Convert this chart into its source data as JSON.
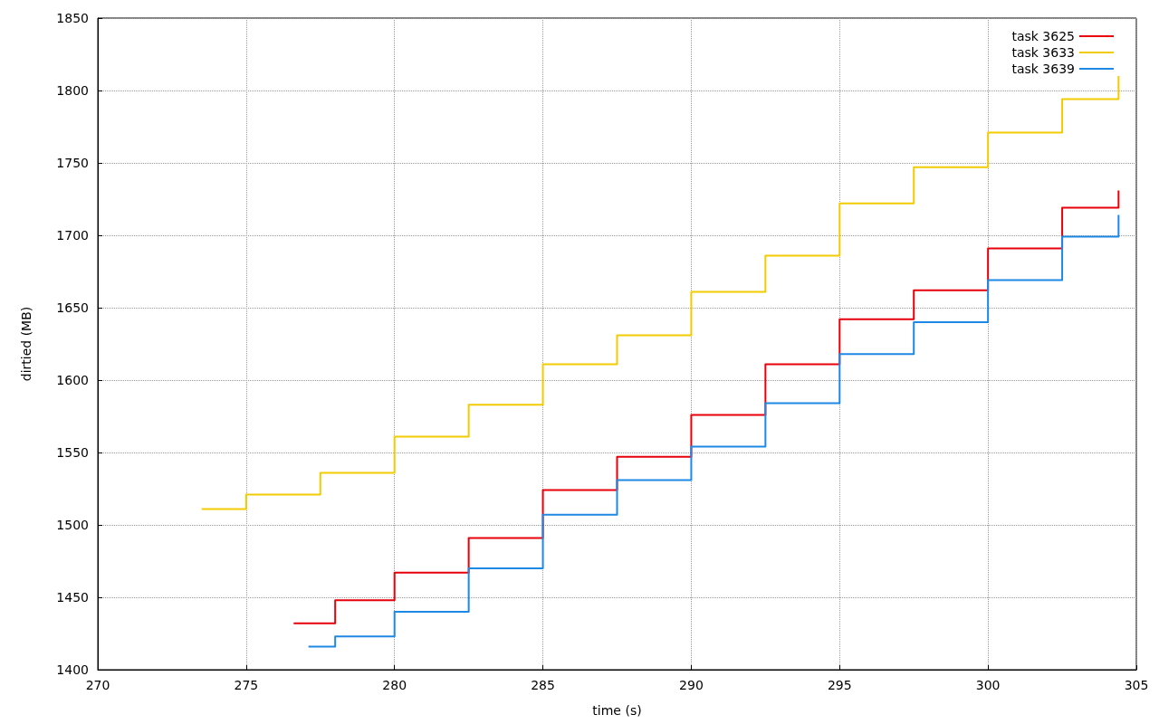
{
  "chart_data": {
    "type": "step",
    "xlabel": "time (s)",
    "ylabel": "dirtied (MB)",
    "xlim": [
      270,
      305
    ],
    "xticks": [
      270,
      275,
      280,
      285,
      290,
      295,
      300,
      305
    ],
    "ylim": [
      1400,
      1850
    ],
    "yticks": [
      1400,
      1450,
      1500,
      1550,
      1600,
      1650,
      1700,
      1750,
      1800,
      1850
    ],
    "grid": true,
    "legend": "top right",
    "marker": "none",
    "line_style": "solid",
    "series": [
      {
        "name": "task 3625",
        "color": "#e8000b",
        "x": [
          276.6,
          278,
          280,
          282.5,
          285,
          287.5,
          290,
          292.5,
          295,
          297.5,
          300,
          302.5,
          304.4
        ],
        "values": [
          1432,
          1448,
          1467,
          1491,
          1524,
          1547,
          1576,
          1611,
          1642,
          1662,
          1691,
          1719,
          1731
        ]
      },
      {
        "name": "task 3633",
        "color": "#f2cc00",
        "x": [
          273.5,
          275,
          277.5,
          280,
          282.5,
          285,
          287.5,
          290,
          292.5,
          295,
          297.5,
          300,
          302.5,
          304.4
        ],
        "values": [
          1511,
          1521,
          1536,
          1561,
          1583,
          1611,
          1631,
          1661,
          1686,
          1722,
          1747,
          1771,
          1794,
          1810
        ]
      },
      {
        "name": "task 3639",
        "color": "#1e88e5",
        "x": [
          277.1,
          278,
          280,
          282.5,
          285,
          287.5,
          290,
          292.5,
          295,
          297.5,
          300,
          302.5,
          304.4
        ],
        "values": [
          1416,
          1423,
          1440,
          1470,
          1507,
          1531,
          1554,
          1584,
          1618,
          1640,
          1669,
          1699,
          1714
        ]
      }
    ]
  }
}
